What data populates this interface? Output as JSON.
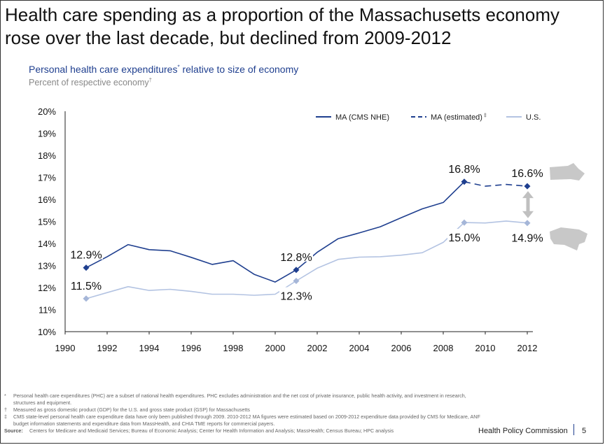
{
  "slide": {
    "title_line1": "Health care spending as a proportion of the Massachusetts economy",
    "title_line2": "rose over the last decade, but declined from 2009-2012",
    "subtitle": "Personal health care expenditures",
    "subtitle_mark": "*",
    "subtitle_rest": " relative to size of economy",
    "subtitle2": "Percent of respective economy",
    "subtitle2_mark": "†",
    "footnotes": [
      {
        "mark": "*",
        "text": "Personal health care expenditures (PHC) are a subset of national health expenditures. PHC excludes administration and the net cost of private insurance, public health activity, and investment in research, structures and equipment."
      },
      {
        "mark": "†",
        "text": "Measured as gross domestic product (GDP) for the U.S. and gross state product (GSP) for Massachusetts"
      },
      {
        "mark": "‡",
        "text": "CMS state-level personal health care expenditure data have only been published through 2009. 2010-2012 MA figures were estimated based on 2009-2012 expenditure data provided by CMS for Medicare, ANF budget information statements and expenditure data from MassHealth, and CHIA TME reports for commercial payers."
      }
    ],
    "source_label": "Source:",
    "source_text": "Centers for Medicare and Medicaid Services; Bureau of Economic Analysis; Center for Health Information and Analysis; MassHealth; Census Bureau; HPC analysis",
    "brand": "Health Policy Commission",
    "page_number": "5"
  },
  "chart_data": {
    "type": "line",
    "xlim": [
      1990,
      2012
    ],
    "ylim": [
      10,
      20
    ],
    "x_ticks": [
      1990,
      1992,
      1994,
      1996,
      1998,
      2000,
      2002,
      2004,
      2006,
      2008,
      2010,
      2012
    ],
    "y_ticks": [
      "10%",
      "11%",
      "12%",
      "13%",
      "14%",
      "15%",
      "16%",
      "17%",
      "18%",
      "19%",
      "20%"
    ],
    "grid": false,
    "legend_position": "top-right",
    "colors": {
      "ma": "#1f3f8f",
      "us": "#b3c3e2",
      "marker_us": "#a5b6d8",
      "map": "#c8c8c8",
      "arrow": "#c0c0c0"
    },
    "series": [
      {
        "name": "MA (CMS NHE)",
        "style": "solid",
        "color": "#1f3f8f",
        "points": [
          [
            1991,
            12.9
          ],
          [
            1992,
            13.4
          ],
          [
            1993,
            13.95
          ],
          [
            1994,
            13.72
          ],
          [
            1995,
            13.67
          ],
          [
            1996,
            13.37
          ],
          [
            1997,
            13.05
          ],
          [
            1998,
            13.22
          ],
          [
            1999,
            12.6
          ],
          [
            2000,
            12.25
          ],
          [
            2001,
            12.8
          ],
          [
            2002,
            13.6
          ],
          [
            2003,
            14.22
          ],
          [
            2004,
            14.48
          ],
          [
            2005,
            14.76
          ],
          [
            2006,
            15.17
          ],
          [
            2007,
            15.57
          ],
          [
            2008,
            15.86
          ],
          [
            2009,
            16.8
          ]
        ]
      },
      {
        "name": "MA (estimated)",
        "legend_mark": "‡",
        "style": "dashed",
        "color": "#1f3f8f",
        "points": [
          [
            2009,
            16.8
          ],
          [
            2010,
            16.6
          ],
          [
            2011,
            16.68
          ],
          [
            2012,
            16.6
          ]
        ]
      },
      {
        "name": "U.S.",
        "style": "solid",
        "color": "#b3c3e2",
        "points": [
          [
            1991,
            11.5
          ],
          [
            1992,
            11.77
          ],
          [
            1993,
            12.04
          ],
          [
            1994,
            11.87
          ],
          [
            1995,
            11.92
          ],
          [
            1996,
            11.83
          ],
          [
            1997,
            11.7
          ],
          [
            1998,
            11.7
          ],
          [
            1999,
            11.65
          ],
          [
            2000,
            11.7
          ],
          [
            2001,
            12.3
          ],
          [
            2002,
            12.88
          ],
          [
            2003,
            13.28
          ],
          [
            2004,
            13.38
          ],
          [
            2005,
            13.4
          ],
          [
            2006,
            13.47
          ],
          [
            2007,
            13.58
          ],
          [
            2008,
            14.05
          ],
          [
            2009,
            14.95
          ],
          [
            2010,
            14.93
          ],
          [
            2011,
            15.02
          ],
          [
            2012,
            14.93
          ]
        ]
      }
    ],
    "markers": [
      {
        "series": "MA",
        "x": 1991,
        "y": 12.9
      },
      {
        "series": "MA",
        "x": 2001,
        "y": 12.8
      },
      {
        "series": "MA",
        "x": 2009,
        "y": 16.8
      },
      {
        "series": "MA",
        "x": 2012,
        "y": 16.6
      },
      {
        "series": "US",
        "x": 1991,
        "y": 11.5
      },
      {
        "series": "US",
        "x": 2001,
        "y": 12.3
      },
      {
        "series": "US",
        "x": 2009,
        "y": 14.95
      },
      {
        "series": "US",
        "x": 2012,
        "y": 14.93
      }
    ],
    "data_labels": [
      {
        "text": "12.9%",
        "x": 1991,
        "y": 12.9,
        "anchor": "above"
      },
      {
        "text": "11.5%",
        "x": 1991,
        "y": 11.5,
        "anchor": "above"
      },
      {
        "text": "12.8%",
        "x": 2001,
        "y": 12.8,
        "anchor": "above"
      },
      {
        "text": "12.3%",
        "x": 2001,
        "y": 12.3,
        "anchor": "below"
      },
      {
        "text": "16.8%",
        "x": 2009,
        "y": 16.8,
        "anchor": "above"
      },
      {
        "text": "15.0%",
        "x": 2009,
        "y": 14.95,
        "anchor": "below"
      },
      {
        "text": "16.6%",
        "x": 2012,
        "y": 16.6,
        "anchor": "above"
      },
      {
        "text": "14.9%",
        "x": 2012,
        "y": 14.93,
        "anchor": "below"
      }
    ]
  }
}
